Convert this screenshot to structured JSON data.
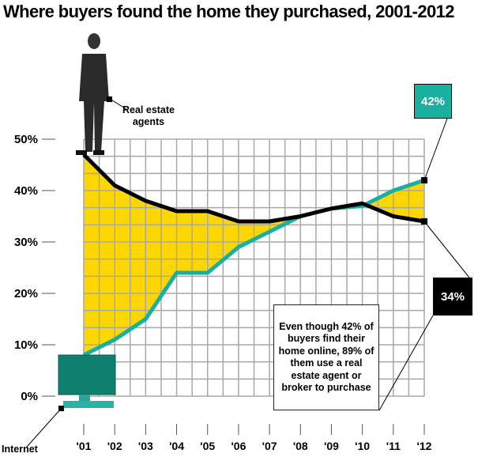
{
  "title": "Where buyers found the home they purchased, 2001-2012",
  "chart_data": {
    "type": "line",
    "title": "Where buyers found the home they purchased, 2001-2012",
    "categories": [
      "'01",
      "'02",
      "'03",
      "'04",
      "'05",
      "'06",
      "'07",
      "'08",
      "'09",
      "'10",
      "'11",
      "'12"
    ],
    "y_ticks": [
      "0%",
      "10%",
      "20%",
      "30%",
      "40%",
      "50%"
    ],
    "ylim": [
      0,
      50
    ],
    "grid": true,
    "fill_between": true,
    "series": [
      {
        "name": "Real estate agents",
        "values": [
          47,
          41,
          38,
          36,
          36,
          34,
          34,
          35,
          36.5,
          37.5,
          35,
          34
        ],
        "color": "#000000",
        "end_label": "34%"
      },
      {
        "name": "Internet",
        "values": [
          8,
          11,
          15,
          24,
          24,
          29,
          32,
          35,
          36.5,
          37,
          40,
          42
        ],
        "color": "#1AB0A0",
        "end_label": "42%"
      }
    ],
    "fill_color": "#FFD700",
    "annotation": "Even though 42% of buyers find their home online, 89% of them use a real estate agent or broker to purchase"
  },
  "labels": {
    "agents": "Real estate agents",
    "internet": "Internet"
  }
}
